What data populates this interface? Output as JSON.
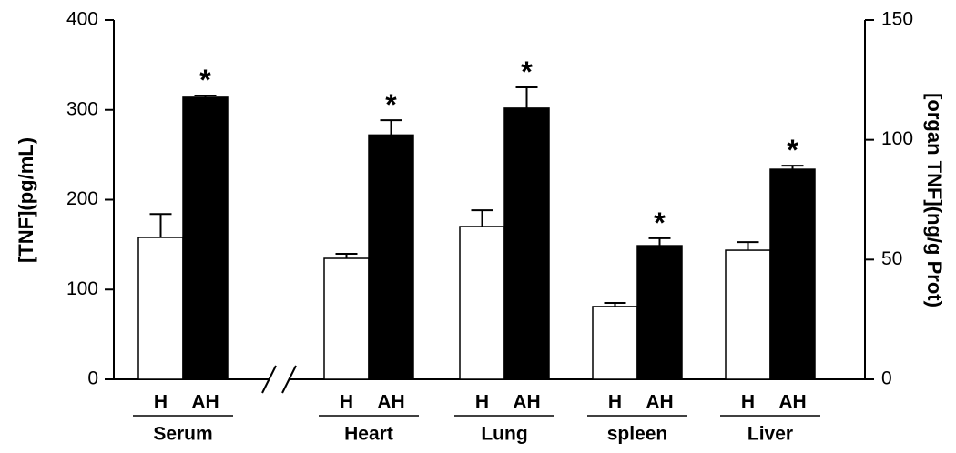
{
  "chart_data": [
    {
      "type": "bar",
      "ylabel": "[TNF](pg/mL)",
      "ylim": [
        0,
        400
      ],
      "yticks": [
        0,
        100,
        200,
        300,
        400
      ],
      "categories": [
        "Serum"
      ],
      "annotation": "*",
      "series": [
        {
          "name": "H",
          "color": "#ffffff",
          "values": [
            158
          ],
          "errors": [
            26
          ]
        },
        {
          "name": "AH",
          "color": "#000000",
          "values": [
            314
          ],
          "errors": [
            2
          ]
        }
      ]
    },
    {
      "type": "bar",
      "y2label": "[organ TNF](ng/g Prot)",
      "y2lim": [
        0,
        150
      ],
      "y2ticks": [
        0,
        50,
        100,
        150
      ],
      "categories": [
        "Heart",
        "Lung",
        "spleen",
        "Liver"
      ],
      "annotation": "*",
      "series": [
        {
          "name": "H",
          "color": "#ffffff",
          "axis": "y2",
          "values": [
            50.5,
            63.8,
            30.4,
            53.9
          ],
          "errors": [
            1.9,
            6.8,
            1.5,
            3.4
          ]
        },
        {
          "name": "AH",
          "color": "#000000",
          "axis": "y2",
          "values": [
            102,
            113.2,
            55.8,
            87.7
          ],
          "errors": [
            6.2,
            8.7,
            3.1,
            1.5
          ]
        }
      ]
    }
  ]
}
